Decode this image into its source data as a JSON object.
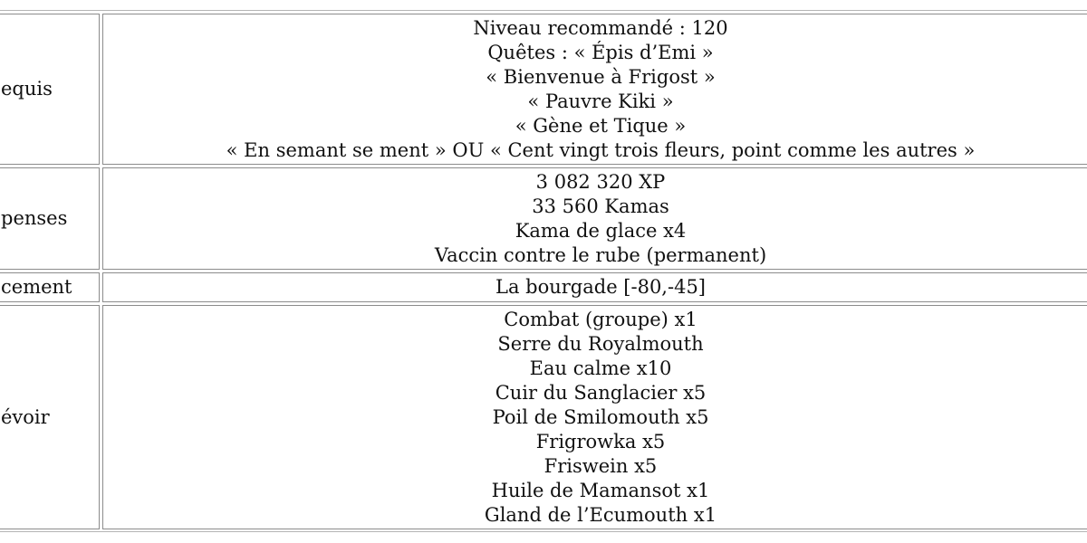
{
  "table": {
    "rows": [
      {
        "label": "equis",
        "lines": [
          "Niveau recommandé : 120",
          "Quêtes : « Épis d’Emi »",
          "« Bienvenue à Frigost »",
          "« Pauvre Kiki »",
          "« Gène et Tique »",
          "« En semant se ment » OU « Cent vingt trois fleurs, point comme les autres »"
        ]
      },
      {
        "label": "penses",
        "lines": [
          "3 082 320 XP",
          "33 560 Kamas",
          "Kama de glace x4",
          "Vaccin contre le rube (permanent)"
        ]
      },
      {
        "label": "cement",
        "lines": [
          "La bourgade [-80,-45]"
        ]
      },
      {
        "label": "évoir",
        "lines": [
          "Combat (groupe) x1",
          "Serre du Royalmouth",
          "Eau calme x10",
          "Cuir du Sanglacier x5",
          "Poil de Smilomouth x5",
          "Frigrowka x5",
          "Friswein x5",
          "Huile de Mamansot x1",
          "Gland de l’Ecumouth x1"
        ]
      }
    ]
  }
}
